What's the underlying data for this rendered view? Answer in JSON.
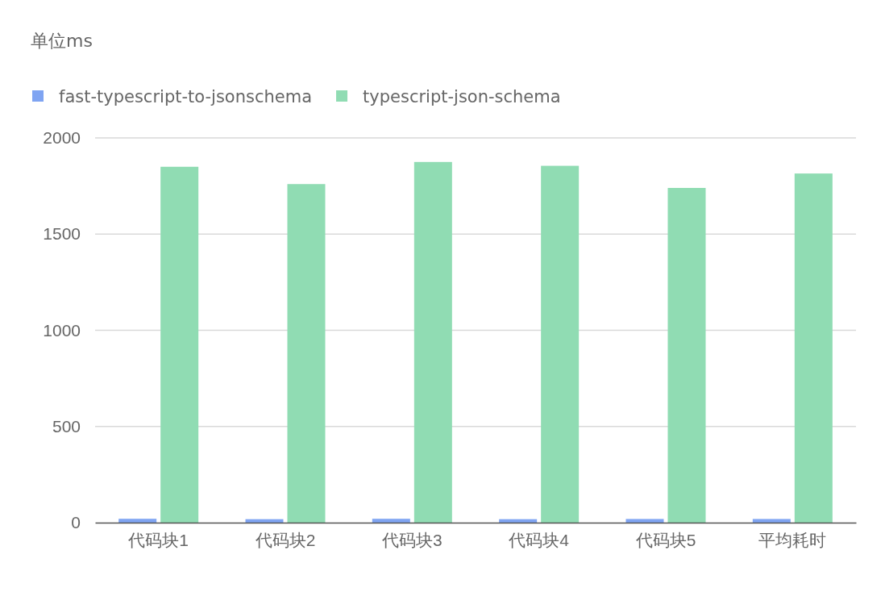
{
  "chart_data": {
    "type": "bar",
    "title": "单位ms",
    "categories": [
      "代码块1",
      "代码块2",
      "代码块3",
      "代码块4",
      "代码块5",
      "平均耗时"
    ],
    "series": [
      {
        "name": "fast-typescript-to-jsonschema",
        "color": "#7fa4f2",
        "values": [
          20,
          18,
          20,
          18,
          19,
          19
        ]
      },
      {
        "name": "typescript-json-schema",
        "color": "#90dcb3",
        "values": [
          1850,
          1760,
          1875,
          1855,
          1740,
          1815
        ]
      }
    ],
    "ylim": [
      0,
      2000
    ],
    "yticks": [
      0,
      500,
      1000,
      1500,
      2000
    ],
    "grid": "y",
    "legend": "top left"
  }
}
